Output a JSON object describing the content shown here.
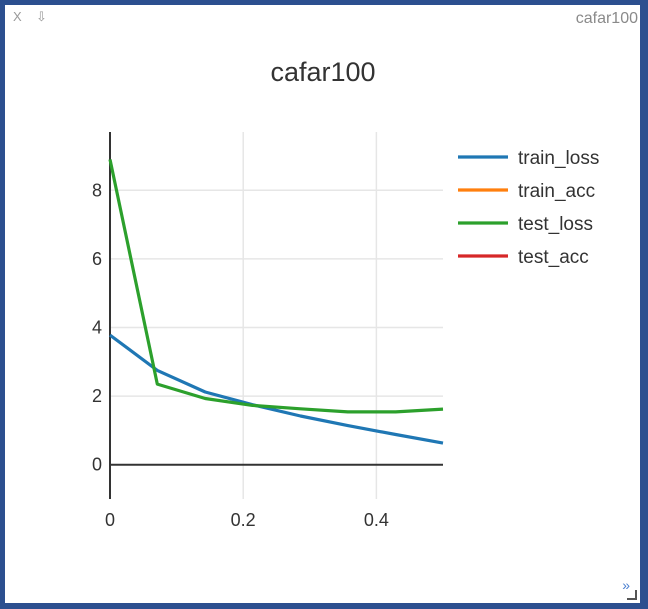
{
  "pane": {
    "name": "cafar100",
    "close_label": "X",
    "save_label": "⇩",
    "expand_label": "»"
  },
  "chart_data": {
    "type": "line",
    "title": "cafar100",
    "xlabel": "",
    "ylabel": "",
    "xlim": [
      0,
      0.5
    ],
    "ylim": [
      -1,
      9.7
    ],
    "x_ticks": [
      0,
      0.2,
      0.4
    ],
    "y_ticks": [
      0,
      2,
      4,
      6,
      8
    ],
    "grid": true,
    "legend_position": "right",
    "series": [
      {
        "name": "train_loss",
        "color": "#1f77b4",
        "x": [
          0,
          0.071,
          0.143,
          0.214,
          0.286,
          0.357,
          0.429,
          0.5
        ],
        "y": [
          3.78,
          2.75,
          2.12,
          1.75,
          1.42,
          1.14,
          0.88,
          0.63
        ]
      },
      {
        "name": "train_acc",
        "color": "#ff7f0e",
        "x": [],
        "y": []
      },
      {
        "name": "test_loss",
        "color": "#2ca02c",
        "x": [
          0,
          0.071,
          0.143,
          0.214,
          0.286,
          0.357,
          0.429,
          0.5
        ],
        "y": [
          8.9,
          2.35,
          1.93,
          1.73,
          1.63,
          1.54,
          1.54,
          1.62
        ]
      },
      {
        "name": "test_acc",
        "color": "#d62728",
        "x": [],
        "y": []
      }
    ]
  }
}
